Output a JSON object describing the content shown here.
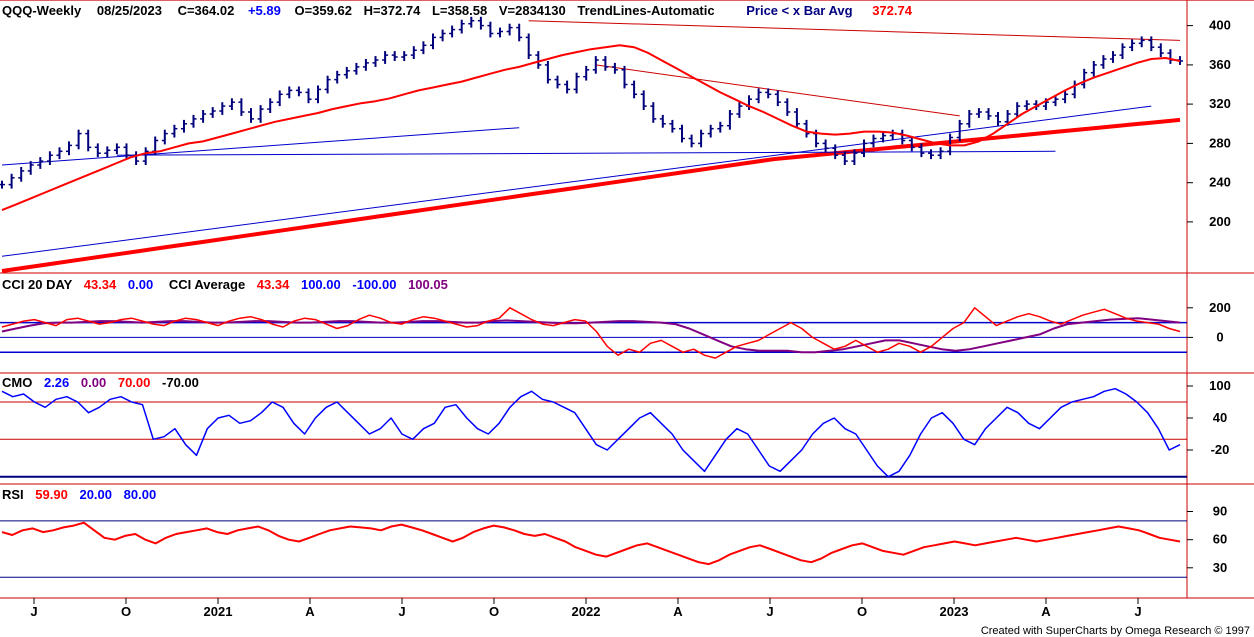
{
  "header": {
    "symbol": "QQQ-Weekly",
    "date": "08/25/2023",
    "close": "C=364.02",
    "change": "+5.89",
    "open": "O=359.62",
    "high": "H=372.74",
    "low": "L=358.58",
    "volume": "V=2834130",
    "study": "TrendLines-Automatic",
    "price_label": "Price < x Bar Avg",
    "price_value": "372.74"
  },
  "cci_header": {
    "title": "CCI 20 DAY",
    "value": "43.34",
    "zero": "0.00",
    "avg_title": "CCI Average",
    "avg_value": "43.34",
    "upper": "100.00",
    "lower": "-100.00",
    "avg2": "100.05"
  },
  "cmo_header": {
    "title": "CMO",
    "value": "2.26",
    "zero": "0.00",
    "upper": "70.00",
    "lower": "-70.00"
  },
  "rsi_header": {
    "title": "RSI",
    "value": "59.90",
    "lower": "20.00",
    "upper": "80.00"
  },
  "credit": "Created with SuperCharts by Omega Research © 1997",
  "colors": {
    "price_bars": "#00007b",
    "moving_average": "#ff0000",
    "trend_lines": "#0000cc",
    "cmo_line": "#0000ff",
    "rsi_line": "#ff0000",
    "cci_line": "#ff0000",
    "cci_average": "#800080",
    "separator": "#cc0000"
  },
  "chart_data": {
    "type": "candlestick",
    "x_tick_labels": [
      "J",
      "O",
      "2021",
      "A",
      "J",
      "O",
      "2022",
      "A",
      "J",
      "O",
      "2023",
      "A",
      "J"
    ],
    "price_panel": {
      "y_ticks": [
        200,
        240,
        280,
        320,
        360,
        400
      ],
      "ylim": [
        150,
        420
      ],
      "weekly_close": [
        238,
        245,
        252,
        258,
        262,
        268,
        272,
        278,
        290,
        276,
        270,
        273,
        276,
        268,
        262,
        272,
        283,
        290,
        295,
        300,
        305,
        310,
        313,
        318,
        322,
        312,
        305,
        315,
        322,
        330,
        334,
        332,
        325,
        335,
        345,
        350,
        354,
        358,
        362,
        365,
        370,
        368,
        370,
        375,
        380,
        388,
        392,
        396,
        402,
        405,
        400,
        392,
        394,
        398,
        388,
        370,
        360,
        345,
        340,
        335,
        348,
        355,
        365,
        358,
        355,
        340,
        330,
        318,
        305,
        300,
        295,
        285,
        280,
        290,
        295,
        298,
        310,
        318,
        325,
        332,
        330,
        322,
        312,
        300,
        290,
        280,
        275,
        268,
        262,
        270,
        280,
        285,
        288,
        290,
        283,
        276,
        270,
        268,
        272,
        286,
        300,
        310,
        312,
        308,
        302,
        310,
        318,
        320,
        318,
        322,
        325,
        330,
        340,
        352,
        360,
        366,
        370,
        378,
        382,
        385,
        378,
        372,
        365,
        364
      ],
      "moving_average_short": [
        212,
        218,
        224,
        230,
        236,
        242,
        248,
        254,
        260,
        266,
        270,
        272,
        276,
        280,
        282,
        286,
        290,
        294,
        298,
        302,
        305,
        308,
        311,
        315,
        318,
        321,
        323,
        326,
        330,
        334,
        337,
        340,
        343,
        347,
        351,
        355,
        358,
        362,
        366,
        370,
        373,
        376,
        378,
        380,
        378,
        372,
        364,
        356,
        348,
        340,
        332,
        325,
        318,
        312,
        305,
        298,
        292,
        290,
        289,
        290,
        292,
        292,
        291,
        288,
        284,
        280,
        278,
        278,
        282,
        290,
        300,
        310,
        318,
        326,
        334,
        341,
        347,
        352,
        357,
        362,
        366,
        367,
        364
      ],
      "moving_average_long": [
        150,
        156,
        162,
        168,
        174,
        180,
        186,
        192,
        198,
        204,
        210,
        216,
        222,
        228,
        234,
        240,
        246,
        252,
        258,
        264,
        268,
        272,
        276,
        280,
        284,
        288,
        292,
        296,
        300,
        304
      ],
      "trend_lines": [
        {
          "from": [
            0,
            258
          ],
          "to": [
            54,
            296
          ],
          "color": "blue"
        },
        {
          "from": [
            0,
            165
          ],
          "to": [
            120,
            318
          ],
          "color": "blue"
        },
        {
          "from": [
            12,
            268
          ],
          "to": [
            110,
            272
          ],
          "color": "blue"
        },
        {
          "from": [
            55,
            405
          ],
          "to": [
            123,
            385
          ],
          "color": "red"
        },
        {
          "from": [
            62,
            360
          ],
          "to": [
            100,
            308
          ],
          "color": "red"
        }
      ]
    },
    "cci_panel": {
      "y_ticks": [
        0,
        200
      ],
      "bands": [
        -100,
        0,
        100
      ],
      "cci": [
        70,
        90,
        110,
        120,
        100,
        80,
        120,
        130,
        110,
        90,
        100,
        120,
        130,
        110,
        90,
        80,
        110,
        130,
        120,
        100,
        80,
        110,
        130,
        140,
        120,
        90,
        70,
        110,
        130,
        120,
        90,
        60,
        80,
        120,
        150,
        130,
        100,
        90,
        120,
        140,
        130,
        110,
        90,
        70,
        80,
        110,
        130,
        200,
        160,
        120,
        90,
        80,
        100,
        120,
        110,
        40,
        -60,
        -120,
        -80,
        -100,
        -40,
        -20,
        -60,
        -100,
        -80,
        -120,
        -140,
        -100,
        -60,
        -40,
        -20,
        20,
        60,
        100,
        60,
        0,
        -40,
        -80,
        -60,
        -20,
        -60,
        -100,
        -80,
        -40,
        -60,
        -100,
        -60,
        0,
        60,
        100,
        200,
        140,
        80,
        110,
        140,
        160,
        140,
        110,
        90,
        120,
        150,
        170,
        190,
        160,
        130,
        110,
        100,
        90,
        60,
        40
      ],
      "cci_average": [
        40,
        60,
        80,
        95,
        100,
        100,
        105,
        110,
        110,
        105,
        100,
        105,
        110,
        110,
        105,
        100,
        100,
        105,
        110,
        110,
        105,
        100,
        100,
        105,
        110,
        110,
        105,
        100,
        100,
        105,
        110,
        110,
        105,
        100,
        100,
        110,
        115,
        110,
        105,
        100,
        95,
        95,
        100,
        105,
        110,
        110,
        105,
        100,
        90,
        60,
        20,
        -20,
        -60,
        -80,
        -90,
        -90,
        -90,
        -100,
        -100,
        -90,
        -80,
        -60,
        -40,
        -20,
        -20,
        -40,
        -60,
        -80,
        -90,
        -80,
        -60,
        -40,
        -20,
        0,
        20,
        60,
        90,
        100,
        110,
        120,
        125,
        130,
        120,
        110,
        100
      ]
    },
    "cmo_panel": {
      "y_ticks": [
        -20,
        40,
        100
      ],
      "bands": [
        -70,
        0,
        70
      ],
      "cmo": [
        90,
        80,
        85,
        70,
        60,
        75,
        80,
        70,
        50,
        60,
        75,
        80,
        70,
        65,
        0,
        5,
        20,
        -10,
        -30,
        20,
        40,
        45,
        30,
        35,
        50,
        70,
        60,
        30,
        10,
        40,
        60,
        70,
        50,
        30,
        10,
        20,
        40,
        10,
        0,
        20,
        30,
        60,
        65,
        40,
        20,
        10,
        30,
        60,
        80,
        90,
        75,
        70,
        60,
        50,
        20,
        -10,
        -20,
        0,
        20,
        40,
        50,
        30,
        10,
        -20,
        -40,
        -60,
        -30,
        0,
        20,
        10,
        -20,
        -50,
        -60,
        -40,
        -20,
        10,
        30,
        40,
        20,
        10,
        -20,
        -50,
        -70,
        -60,
        -30,
        10,
        40,
        50,
        30,
        0,
        -10,
        20,
        40,
        60,
        50,
        30,
        20,
        40,
        60,
        70,
        75,
        80,
        90,
        95,
        85,
        70,
        50,
        20,
        -20,
        -10
      ]
    },
    "rsi_panel": {
      "y_ticks": [
        30,
        60,
        90
      ],
      "bands": [
        20,
        80
      ],
      "rsi": [
        68,
        65,
        70,
        72,
        68,
        70,
        73,
        75,
        78,
        70,
        62,
        60,
        64,
        66,
        60,
        56,
        62,
        66,
        68,
        70,
        72,
        68,
        66,
        70,
        72,
        74,
        70,
        64,
        60,
        58,
        62,
        66,
        70,
        72,
        74,
        73,
        72,
        70,
        74,
        76,
        73,
        70,
        66,
        62,
        58,
        62,
        68,
        72,
        75,
        73,
        70,
        66,
        64,
        66,
        62,
        58,
        52,
        48,
        44,
        42,
        46,
        50,
        54,
        56,
        52,
        48,
        44,
        40,
        36,
        34,
        38,
        44,
        48,
        52,
        54,
        50,
        46,
        42,
        38,
        36,
        40,
        46,
        50,
        54,
        56,
        52,
        48,
        46,
        44,
        48,
        52,
        54,
        56,
        58,
        56,
        54,
        56,
        58,
        60,
        62,
        60,
        58,
        60,
        62,
        64,
        66,
        68,
        70,
        72,
        74,
        72,
        70,
        66,
        62,
        60,
        58
      ]
    }
  }
}
